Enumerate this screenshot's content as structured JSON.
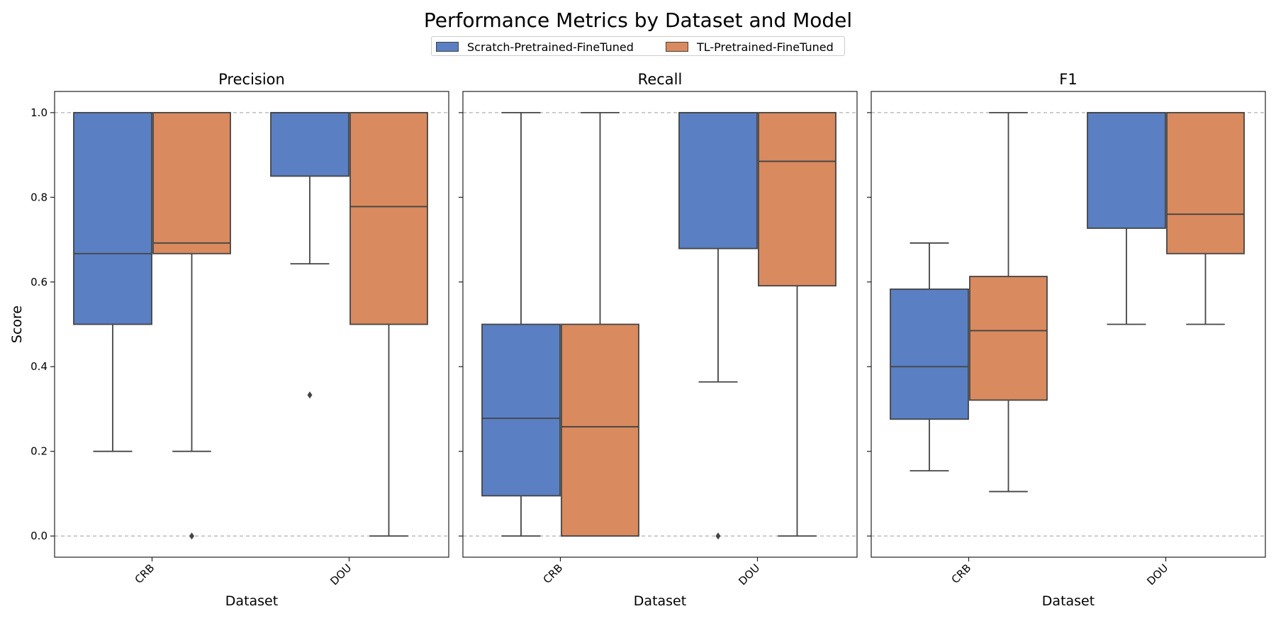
{
  "chart_data": {
    "type": "box",
    "title": "Performance Metrics by Dataset and Model",
    "ylabel": "Score",
    "xlabel": "Dataset",
    "categories": [
      "CRB",
      "DOU"
    ],
    "ylim": [
      -0.05,
      1.05
    ],
    "yticks": [
      0.0,
      0.2,
      0.4,
      0.6,
      0.8,
      1.0
    ],
    "ytick_labels": [
      "0.0",
      "0.2",
      "0.4",
      "0.6",
      "0.8",
      "1.0"
    ],
    "grid": "dashed at 0.0 and 1.0",
    "legend_position": "top-center",
    "series": [
      {
        "name": "Scratch-Pretrained-FineTuned",
        "color": "#5a7fc2"
      },
      {
        "name": "TL-Pretrained-FineTuned",
        "color": "#d98a5e"
      }
    ],
    "panels": [
      {
        "title": "Precision",
        "boxes": [
          {
            "category": "CRB",
            "series": 0,
            "whislo": 0.2,
            "q1": 0.5,
            "med": 0.667,
            "q3": 1.0,
            "whishi": 1.0,
            "outliers": []
          },
          {
            "category": "CRB",
            "series": 1,
            "whislo": 0.2,
            "q1": 0.667,
            "med": 0.692,
            "q3": 1.0,
            "whishi": 1.0,
            "outliers": [
              0.0
            ]
          },
          {
            "category": "DOU",
            "series": 0,
            "whislo": 0.643,
            "q1": 0.85,
            "med": 1.0,
            "q3": 1.0,
            "whishi": 1.0,
            "outliers": [
              0.333
            ]
          },
          {
            "category": "DOU",
            "series": 1,
            "whislo": 0.0,
            "q1": 0.5,
            "med": 0.778,
            "q3": 1.0,
            "whishi": 1.0,
            "outliers": []
          }
        ]
      },
      {
        "title": "Recall",
        "boxes": [
          {
            "category": "CRB",
            "series": 0,
            "whislo": 0.0,
            "q1": 0.095,
            "med": 0.278,
            "q3": 0.5,
            "whishi": 1.0,
            "outliers": []
          },
          {
            "category": "CRB",
            "series": 1,
            "whislo": 0.0,
            "q1": 0.0,
            "med": 0.258,
            "q3": 0.5,
            "whishi": 1.0,
            "outliers": []
          },
          {
            "category": "DOU",
            "series": 0,
            "whislo": 0.364,
            "q1": 0.679,
            "med": 1.0,
            "q3": 1.0,
            "whishi": 1.0,
            "outliers": [
              0.0
            ]
          },
          {
            "category": "DOU",
            "series": 1,
            "whislo": 0.0,
            "q1": 0.591,
            "med": 0.885,
            "q3": 1.0,
            "whishi": 1.0,
            "outliers": []
          }
        ]
      },
      {
        "title": "F1",
        "boxes": [
          {
            "category": "CRB",
            "series": 0,
            "whislo": 0.154,
            "q1": 0.276,
            "med": 0.4,
            "q3": 0.583,
            "whishi": 0.692,
            "outliers": []
          },
          {
            "category": "CRB",
            "series": 1,
            "whislo": 0.105,
            "q1": 0.321,
            "med": 0.485,
            "q3": 0.613,
            "whishi": 1.0,
            "outliers": []
          },
          {
            "category": "DOU",
            "series": 0,
            "whislo": 0.5,
            "q1": 0.727,
            "med": 1.0,
            "q3": 1.0,
            "whishi": 1.0,
            "outliers": []
          },
          {
            "category": "DOU",
            "series": 1,
            "whislo": 0.5,
            "q1": 0.667,
            "med": 0.76,
            "q3": 1.0,
            "whishi": 1.0,
            "outliers": []
          }
        ]
      }
    ]
  }
}
